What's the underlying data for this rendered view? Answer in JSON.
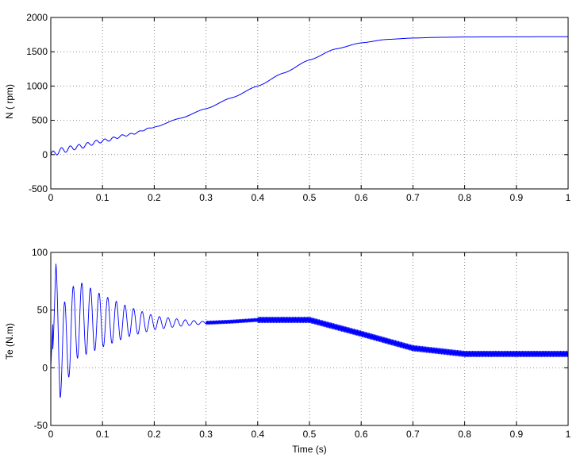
{
  "chart_data": [
    {
      "type": "line",
      "title": "",
      "xlabel": "",
      "ylabel": "N ( rpm)",
      "xlim": [
        0,
        1
      ],
      "ylim": [
        -500,
        2000
      ],
      "xticks": [
        0,
        0.1,
        0.2,
        0.3,
        0.4,
        0.5,
        0.6,
        0.7,
        0.8,
        0.9,
        1
      ],
      "xtick_labels": [
        "0",
        "0.1",
        "0.2",
        "0.3",
        "0.4",
        "0.5",
        "0.6",
        "0.7",
        "0.8",
        "0.9",
        "1"
      ],
      "yticks": [
        -500,
        0,
        500,
        1000,
        1500,
        2000
      ],
      "ytick_labels": [
        "-500",
        "0",
        "500",
        "1000",
        "1500",
        "2000"
      ],
      "grid": true,
      "line_color": "#0000ff",
      "series": [
        {
          "x": [
            0,
            0.02,
            0.05,
            0.1,
            0.15,
            0.2,
            0.25,
            0.3,
            0.35,
            0.4,
            0.45,
            0.5,
            0.55,
            0.6,
            0.65,
            0.7,
            0.75,
            0.8,
            0.9,
            1.0
          ],
          "values": [
            0,
            60,
            110,
            200,
            290,
            400,
            530,
            670,
            830,
            1000,
            1190,
            1380,
            1540,
            1630,
            1680,
            1700,
            1710,
            1715,
            1718,
            1720
          ]
        }
      ]
    },
    {
      "type": "line",
      "title": "",
      "xlabel": "Time (s)",
      "ylabel": "Te (N.m)",
      "xlim": [
        0,
        1
      ],
      "ylim": [
        -50,
        100
      ],
      "xticks": [
        0,
        0.1,
        0.2,
        0.3,
        0.4,
        0.5,
        0.6,
        0.7,
        0.8,
        0.9,
        1
      ],
      "xtick_labels": [
        "0",
        "0.1",
        "0.2",
        "0.3",
        "0.4",
        "0.5",
        "0.6",
        "0.7",
        "0.8",
        "0.9",
        "1"
      ],
      "yticks": [
        -50,
        0,
        50,
        100
      ],
      "ytick_labels": [
        "-50",
        "0",
        "50",
        "100"
      ],
      "grid": true,
      "line_color": "#0000ff",
      "series": [
        {
          "x": [
            0,
            0.01,
            0.018,
            0.03,
            0.05,
            0.1,
            0.15,
            0.2,
            0.25,
            0.3,
            0.35,
            0.4,
            0.45,
            0.5,
            0.55,
            0.6,
            0.65,
            0.7,
            0.75,
            0.8,
            0.9,
            1.0
          ],
          "values": [
            0,
            90,
            -26,
            78,
            70,
            55,
            47,
            38,
            40,
            40,
            41,
            43,
            44,
            42,
            36,
            28,
            20,
            16,
            13,
            12,
            12,
            12
          ],
          "oscillation_envelope": {
            "x": [
              0,
              0.01,
              0.018,
              0.05,
              0.1,
              0.15,
              0.2,
              0.25,
              0.3,
              0.35,
              0.4,
              0.5,
              0.6,
              0.7,
              0.8,
              1.0
            ],
            "upper": [
              0,
              90,
              50,
              76,
              63,
              53,
              45,
              42,
              40,
              41,
              42,
              43,
              32,
              20,
              14,
              14
            ],
            "lower": [
              0,
              30,
              -26,
              8,
              18,
              27,
              33,
              36,
              38,
              39,
              41,
              40,
              27,
              14,
              10,
              10
            ]
          }
        }
      ]
    }
  ]
}
